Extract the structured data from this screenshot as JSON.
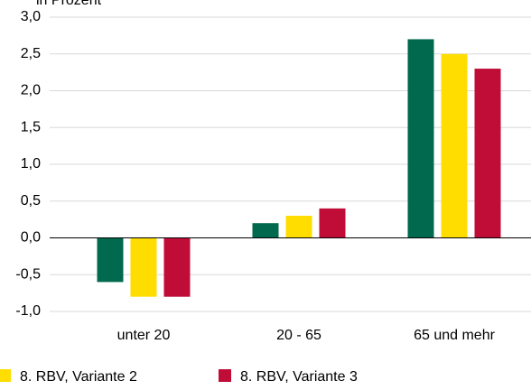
{
  "chart_data": {
    "type": "bar",
    "subtitle": "in Prozent",
    "categories": [
      "unter 20",
      "20 - 65",
      "65 und mehr"
    ],
    "series": [
      {
        "name": null,
        "color": "#00694e",
        "values": [
          -0.6,
          0.2,
          2.7
        ]
      },
      {
        "name": "8. RBV, Variante 2",
        "color": "#ffdd00",
        "values": [
          -0.8,
          0.3,
          2.5
        ]
      },
      {
        "name": "8. RBV, Variante 3",
        "color": "#c00d38",
        "values": [
          -0.8,
          0.4,
          2.3
        ]
      }
    ],
    "ylim": [
      -1,
      3
    ],
    "yticks": [
      {
        "value": -1,
        "label": "-1,0"
      },
      {
        "value": -0.5,
        "label": "-0,5"
      },
      {
        "value": 0,
        "label": "0,0"
      },
      {
        "value": 0.5,
        "label": "0,5"
      },
      {
        "value": 1,
        "label": "1,0"
      },
      {
        "value": 1.5,
        "label": "1,5"
      },
      {
        "value": 2,
        "label": "2,0"
      },
      {
        "value": 2.5,
        "label": "2,5"
      },
      {
        "value": 3,
        "label": "3,0"
      }
    ],
    "grid": true,
    "legend": "bottom"
  }
}
